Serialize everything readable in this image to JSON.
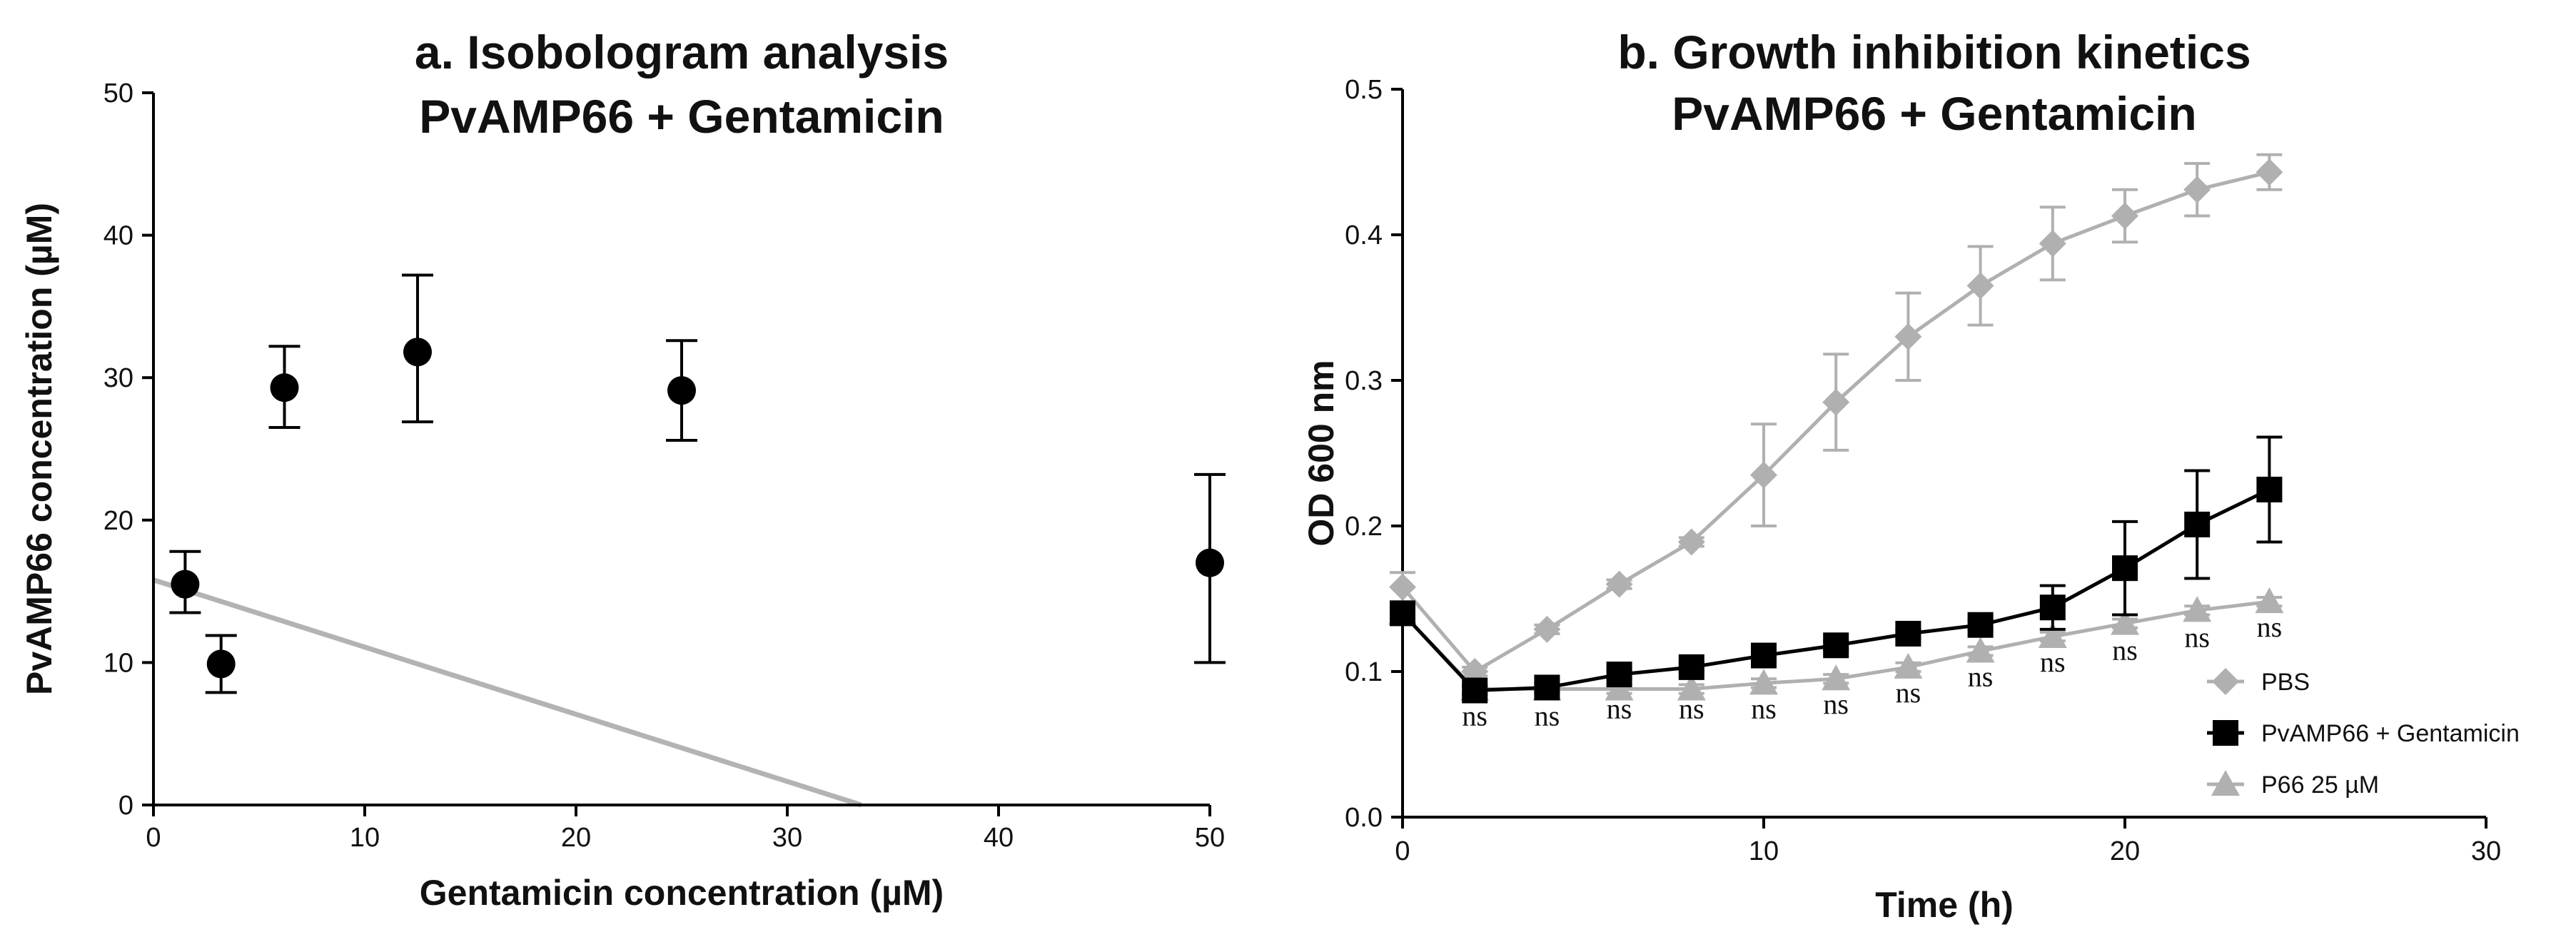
{
  "chart_data": [
    {
      "type": "scatter",
      "title": [
        "a. Isobologram analysis",
        "PvAMP66 + Gentamicin"
      ],
      "xlabel": "Gentamicin concentration (µM)",
      "ylabel": "PvAMP66 concentration (µM)",
      "xlim": [
        0,
        50
      ],
      "ylim": [
        0,
        50
      ],
      "xticks": [
        0,
        10,
        20,
        30,
        40,
        50
      ],
      "yticks": [
        0,
        10,
        20,
        30,
        40,
        50
      ],
      "points": [
        {
          "x": 1.5,
          "y": 15.5,
          "err_lo": 2.0,
          "err_hi": 2.3
        },
        {
          "x": 3.2,
          "y": 9.9,
          "err_lo": 2.0,
          "err_hi": 2.0
        },
        {
          "x": 6.2,
          "y": 29.3,
          "err_lo": 2.8,
          "err_hi": 2.9
        },
        {
          "x": 12.5,
          "y": 31.8,
          "err_lo": 4.9,
          "err_hi": 5.4
        },
        {
          "x": 25.0,
          "y": 29.1,
          "err_lo": 3.5,
          "err_hi": 3.5
        },
        {
          "x": 50.0,
          "y": 17.0,
          "err_lo": 7.0,
          "err_hi": 6.2
        }
      ],
      "additivity_line": {
        "x": [
          0,
          33.5
        ],
        "y": [
          15.8,
          0
        ],
        "color": "#b3b3b3"
      },
      "marker_color": "#000000"
    },
    {
      "type": "line",
      "title": [
        "b. Growth inhibition kinetics",
        "PvAMP66 + Gentamicin"
      ],
      "xlabel": "Time (h)",
      "ylabel": "OD 600 nm",
      "xlim": [
        0,
        30
      ],
      "ylim": [
        0,
        0.5
      ],
      "xticks": [
        0,
        10,
        20,
        30
      ],
      "yticks": [
        "0.0",
        "0.1",
        "0.2",
        "0.3",
        "0.4",
        "0.5"
      ],
      "x": [
        0,
        2,
        4,
        6,
        8,
        10,
        12,
        14,
        16,
        18,
        20,
        22,
        24
      ],
      "series": [
        {
          "name": "PBS",
          "marker": "diamond",
          "color": "#b0b0b0",
          "values": [
            0.158,
            0.1,
            0.129,
            0.16,
            0.189,
            0.235,
            0.285,
            0.33,
            0.365,
            0.394,
            0.413,
            0.431,
            0.443
          ],
          "errors": [
            0.01,
            0.003,
            0.003,
            0.003,
            0.003,
            0.035,
            0.033,
            0.03,
            0.027,
            0.025,
            0.018,
            0.018,
            0.012
          ]
        },
        {
          "name": "PvAMP66 + Gentamicin",
          "marker": "square",
          "color": "#000000",
          "values": [
            0.14,
            0.087,
            0.089,
            0.098,
            0.103,
            0.111,
            0.118,
            0.126,
            0.132,
            0.144,
            0.171,
            0.201,
            0.225
          ],
          "errors": [
            0.005,
            0.003,
            0.003,
            0.003,
            0.003,
            0.003,
            0.003,
            0.003,
            0.003,
            0.015,
            0.032,
            0.037,
            0.036
          ]
        },
        {
          "name": "P66 25 µM",
          "marker": "triangle",
          "color": "#b0b0b0",
          "values": [
            0.14,
            0.088,
            0.088,
            0.088,
            0.088,
            0.092,
            0.095,
            0.103,
            0.114,
            0.124,
            0.133,
            0.142,
            0.148
          ],
          "errors": [
            0.005,
            0.003,
            0.003,
            0.003,
            0.003,
            0.003,
            0.003,
            0.003,
            0.003,
            0.003,
            0.003,
            0.003,
            0.003
          ]
        }
      ],
      "annotations": [
        {
          "x": 2,
          "y": 0.063,
          "text": "ns"
        },
        {
          "x": 4,
          "y": 0.063,
          "text": "ns"
        },
        {
          "x": 6,
          "y": 0.068,
          "text": "ns"
        },
        {
          "x": 8,
          "y": 0.068,
          "text": "ns"
        },
        {
          "x": 10,
          "y": 0.068,
          "text": "ns"
        },
        {
          "x": 12,
          "y": 0.071,
          "text": "ns"
        },
        {
          "x": 14,
          "y": 0.079,
          "text": "ns"
        },
        {
          "x": 16,
          "y": 0.09,
          "text": "ns"
        },
        {
          "x": 18,
          "y": 0.1,
          "text": "ns"
        },
        {
          "x": 20,
          "y": 0.108,
          "text": "ns"
        },
        {
          "x": 22,
          "y": 0.117,
          "text": "ns"
        },
        {
          "x": 24,
          "y": 0.124,
          "text": "ns"
        }
      ],
      "legend": "bottom-right"
    }
  ]
}
